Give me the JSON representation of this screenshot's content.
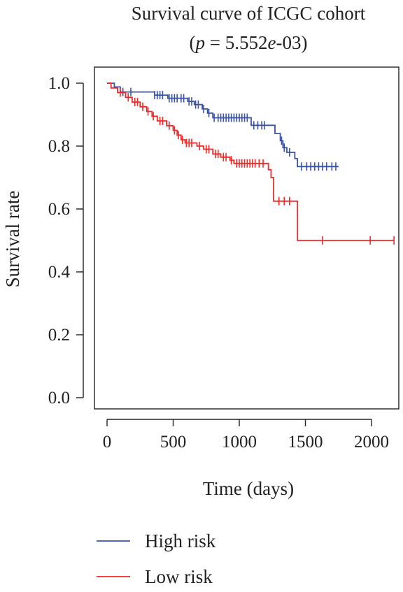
{
  "chart_data": {
    "type": "line",
    "title": "Survival curve of ICGC cohort",
    "subtitle": {
      "prefix": "(",
      "p_symbol": "p",
      "eq": " = 5.552",
      "e_symbol": "e",
      "suffix": "-03)"
    },
    "xlabel": "Time (days)",
    "ylabel": "Survival rate",
    "xlim": [
      0,
      2200
    ],
    "ylim": [
      0,
      1
    ],
    "xticks": [
      0,
      500,
      1000,
      1500,
      2000
    ],
    "xtick_labels": [
      "0",
      "500",
      "1000",
      "1500",
      "2000"
    ],
    "yticks": [
      0,
      0.2,
      0.4,
      0.6,
      0.8,
      1.0
    ],
    "ytick_labels": [
      "0.0",
      "0.2",
      "0.4",
      "0.6",
      "0.8",
      "1.0"
    ],
    "grid": false,
    "legend_position": "bottom",
    "series": [
      {
        "name": "High risk",
        "color": "#3a53a4",
        "steps": [
          [
            0,
            1.0
          ],
          [
            55,
            0.988
          ],
          [
            100,
            0.972
          ],
          [
            360,
            0.962
          ],
          [
            460,
            0.952
          ],
          [
            610,
            0.942
          ],
          [
            660,
            0.932
          ],
          [
            720,
            0.918
          ],
          [
            760,
            0.905
          ],
          [
            800,
            0.89
          ],
          [
            1090,
            0.866
          ],
          [
            1270,
            0.84
          ],
          [
            1310,
            0.817
          ],
          [
            1330,
            0.795
          ],
          [
            1360,
            0.78
          ],
          [
            1420,
            0.76
          ],
          [
            1440,
            0.735
          ],
          [
            1750,
            0.735
          ]
        ],
        "censors": [
          [
            120,
            0.972
          ],
          [
            180,
            0.972
          ],
          [
            360,
            0.962
          ],
          [
            380,
            0.962
          ],
          [
            400,
            0.962
          ],
          [
            420,
            0.962
          ],
          [
            470,
            0.952
          ],
          [
            490,
            0.952
          ],
          [
            510,
            0.952
          ],
          [
            530,
            0.952
          ],
          [
            560,
            0.952
          ],
          [
            580,
            0.952
          ],
          [
            620,
            0.942
          ],
          [
            640,
            0.942
          ],
          [
            670,
            0.932
          ],
          [
            690,
            0.932
          ],
          [
            730,
            0.918
          ],
          [
            770,
            0.905
          ],
          [
            810,
            0.89
          ],
          [
            840,
            0.89
          ],
          [
            860,
            0.89
          ],
          [
            880,
            0.89
          ],
          [
            900,
            0.89
          ],
          [
            920,
            0.89
          ],
          [
            940,
            0.89
          ],
          [
            960,
            0.89
          ],
          [
            980,
            0.89
          ],
          [
            1000,
            0.89
          ],
          [
            1020,
            0.89
          ],
          [
            1040,
            0.89
          ],
          [
            1060,
            0.89
          ],
          [
            1110,
            0.866
          ],
          [
            1140,
            0.866
          ],
          [
            1170,
            0.866
          ],
          [
            1190,
            0.866
          ],
          [
            1320,
            0.817
          ],
          [
            1340,
            0.795
          ],
          [
            1380,
            0.78
          ],
          [
            1470,
            0.735
          ],
          [
            1510,
            0.735
          ],
          [
            1540,
            0.735
          ],
          [
            1570,
            0.735
          ],
          [
            1600,
            0.735
          ],
          [
            1630,
            0.735
          ],
          [
            1660,
            0.735
          ],
          [
            1700,
            0.735
          ],
          [
            1730,
            0.735
          ]
        ]
      },
      {
        "name": "Low risk",
        "color": "#ee2a2a",
        "steps": [
          [
            0,
            1.0
          ],
          [
            30,
            0.985
          ],
          [
            80,
            0.97
          ],
          [
            140,
            0.955
          ],
          [
            190,
            0.94
          ],
          [
            250,
            0.925
          ],
          [
            300,
            0.91
          ],
          [
            340,
            0.895
          ],
          [
            380,
            0.88
          ],
          [
            450,
            0.865
          ],
          [
            500,
            0.85
          ],
          [
            530,
            0.835
          ],
          [
            560,
            0.82
          ],
          [
            590,
            0.81
          ],
          [
            680,
            0.8
          ],
          [
            730,
            0.79
          ],
          [
            800,
            0.775
          ],
          [
            860,
            0.765
          ],
          [
            930,
            0.755
          ],
          [
            960,
            0.745
          ],
          [
            1220,
            0.725
          ],
          [
            1240,
            0.7
          ],
          [
            1260,
            0.625
          ],
          [
            1440,
            0.5
          ],
          [
            2170,
            0.5
          ]
        ],
        "censors": [
          [
            100,
            0.97
          ],
          [
            160,
            0.955
          ],
          [
            210,
            0.94
          ],
          [
            230,
            0.94
          ],
          [
            270,
            0.925
          ],
          [
            310,
            0.91
          ],
          [
            350,
            0.895
          ],
          [
            400,
            0.88
          ],
          [
            420,
            0.88
          ],
          [
            470,
            0.865
          ],
          [
            510,
            0.85
          ],
          [
            540,
            0.835
          ],
          [
            570,
            0.82
          ],
          [
            600,
            0.81
          ],
          [
            620,
            0.81
          ],
          [
            640,
            0.81
          ],
          [
            700,
            0.8
          ],
          [
            750,
            0.79
          ],
          [
            770,
            0.79
          ],
          [
            820,
            0.775
          ],
          [
            840,
            0.775
          ],
          [
            880,
            0.765
          ],
          [
            900,
            0.765
          ],
          [
            940,
            0.755
          ],
          [
            980,
            0.745
          ],
          [
            1000,
            0.745
          ],
          [
            1020,
            0.745
          ],
          [
            1040,
            0.745
          ],
          [
            1060,
            0.745
          ],
          [
            1080,
            0.745
          ],
          [
            1100,
            0.745
          ],
          [
            1120,
            0.745
          ],
          [
            1150,
            0.745
          ],
          [
            1180,
            0.745
          ],
          [
            1300,
            0.625
          ],
          [
            1340,
            0.625
          ],
          [
            1380,
            0.625
          ],
          [
            1630,
            0.5
          ],
          [
            1990,
            0.5
          ],
          [
            2170,
            0.5
          ]
        ]
      }
    ]
  }
}
